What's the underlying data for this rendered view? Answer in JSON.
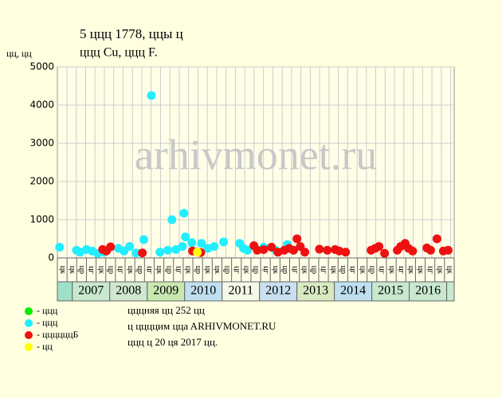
{
  "chart_data": {
    "type": "scatter",
    "title": "5 ццц 1778, ццы ц",
    "subtitle": "ццц Cu, ццц F.",
    "y_label": "цц, цц",
    "watermark": "arhivmonet.ru",
    "xlim": [
      2006.6,
      2017.2
    ],
    "ylim": [
      0,
      5000
    ],
    "yticks": [
      0,
      1000,
      2000,
      3000,
      4000,
      5000
    ],
    "xticks": [
      2007,
      2008,
      2009,
      2010,
      2011,
      2012,
      2013,
      2014,
      2015,
      2016
    ],
    "xtick_colors": [
      "#c8e8d0",
      "#d0e8d0",
      "#c8e8b0",
      "#c0e0f0",
      "#f4f8e8",
      "#c8e0f0",
      "#d8e8c0",
      "#c0e0f0",
      "#c8e8d0",
      "#c8e8d0"
    ],
    "grid": true,
    "period_labels": [
      "цк",
      "цк",
      "цр",
      "цг",
      "цк",
      "цр",
      "цг",
      "цк",
      "цр",
      "цг",
      "цк",
      "цр",
      "цг",
      "цк",
      "цр",
      "цк",
      "цк",
      "цр",
      "цг",
      "цк",
      "цр",
      "цг",
      "цк",
      "цр",
      "цг",
      "цк",
      "цр",
      "цг",
      "цк",
      "цр",
      "цг",
      "цк",
      "цр",
      "цг",
      "цк",
      "цг",
      "цк",
      "цк",
      "цг",
      "цк",
      "цк"
    ],
    "series": [
      {
        "name": "- ццц",
        "color": "#00ee00",
        "x": [],
        "values": []
      },
      {
        "name": "- ццц",
        "color": "#22eeff",
        "x": [
          2006.66,
          2007.11,
          2007.21,
          2007.38,
          2007.53,
          2007.68,
          2007.85,
          2008.23,
          2008.38,
          2008.53,
          2008.7,
          2008.91,
          2009.11,
          2009.34,
          2009.55,
          2009.66,
          2009.77,
          2009.94,
          2009.98,
          2010.02,
          2010.19,
          2010.45,
          2010.62,
          2010.79,
          2011.04,
          2011.47,
          2011.57,
          2011.68,
          2012.11,
          2012.43,
          2012.74
        ],
        "values": [
          280,
          200,
          150,
          220,
          180,
          120,
          150,
          250,
          180,
          300,
          130,
          480,
          4250,
          150,
          200,
          1000,
          220,
          300,
          1170,
          550,
          400,
          380,
          250,
          300,
          420,
          380,
          250,
          200,
          280,
          200,
          350
        ]
      },
      {
        "name": "- ццццццБ",
        "color": "#ee1111",
        "x": [
          2007.81,
          2007.91,
          2008.02,
          2008.87,
          2010.21,
          2010.43,
          2011.85,
          2011.94,
          2012.11,
          2012.32,
          2012.49,
          2012.66,
          2012.79,
          2012.91,
          2013.0,
          2013.09,
          2013.21,
          2013.6,
          2013.81,
          2014.02,
          2014.13,
          2014.3,
          2014.98,
          2015.09,
          2015.19,
          2015.34,
          2015.68,
          2015.77,
          2015.89,
          2015.98,
          2016.09,
          2016.47,
          2016.57,
          2016.74,
          2016.91,
          2017.04
        ],
        "values": [
          220,
          180,
          290,
          130,
          180,
          140,
          320,
          200,
          220,
          280,
          150,
          200,
          250,
          200,
          500,
          300,
          150,
          230,
          200,
          220,
          180,
          150,
          200,
          250,
          300,
          120,
          200,
          300,
          380,
          250,
          180,
          260,
          200,
          500,
          180,
          200
        ]
      },
      {
        "name": "- цц",
        "color": "#ffff00",
        "x": [
          2010.34
        ],
        "values": [
          150
        ]
      }
    ],
    "notes": [
      "цццняя цц 252 цц",
      "ц ццццим ццa ARHIVMONET.RU",
      "ццц ц 20 ця 2017 цц."
    ]
  }
}
